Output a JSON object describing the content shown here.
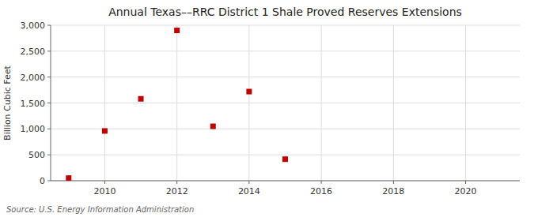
{
  "chart_data": {
    "type": "scatter",
    "title": "Annual Texas––RRC District 1 Shale Proved Reserves Extensions",
    "ylabel": "Billion Cubic Feet",
    "annotations": [
      "Source: U.S. Energy Information Administration"
    ],
    "x": [
      2009,
      2010,
      2011,
      2012,
      2013,
      2014,
      2015
    ],
    "values": [
      50,
      960,
      1580,
      2900,
      1050,
      1720,
      415
    ],
    "color": "#c00000",
    "marker": "square",
    "xlim": [
      2008.5,
      2021.5
    ],
    "ylim": [
      0,
      3000
    ],
    "xticks": [
      2010,
      2012,
      2014,
      2016,
      2018,
      2020
    ],
    "yticks": [
      0,
      500,
      {
        "value": 1000,
        "label": "1,000"
      },
      {
        "value": 1500,
        "label": "1,500"
      },
      {
        "value": 2000,
        "label": "2,000"
      },
      {
        "value": 2500,
        "label": "2,500"
      },
      {
        "value": 3000,
        "label": "3,000"
      }
    ],
    "grid": true
  }
}
